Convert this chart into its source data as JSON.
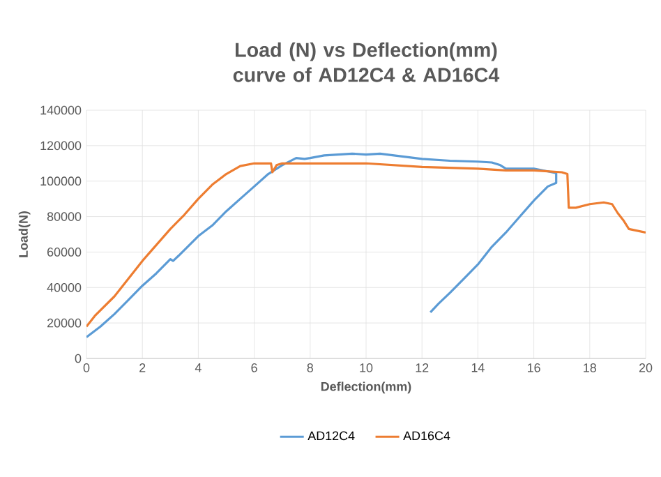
{
  "chart_data": {
    "type": "line",
    "title": "Load (N) vs Deflection(mm) curve of AD12C4 & AD16C4",
    "xlabel": "Deflection(mm)",
    "ylabel": "Load(N)",
    "xlim": [
      0,
      20
    ],
    "xticks": [
      0,
      2,
      4,
      6,
      8,
      10,
      12,
      14,
      16,
      18,
      20
    ],
    "ylim": [
      0,
      140000
    ],
    "yticks": [
      0,
      20000,
      40000,
      60000,
      80000,
      100000,
      120000,
      140000
    ],
    "grid": true,
    "legend": "bottom",
    "marker": "none",
    "line_style": "solid",
    "series": [
      {
        "name": "AD12C4",
        "color": "#5b9bd5",
        "x": [
          0,
          0.5,
          1,
          1.5,
          2,
          2.5,
          3,
          3.1,
          3.3,
          4,
          4.5,
          5,
          5.5,
          6,
          6.5,
          7,
          7.5,
          7.8,
          8,
          8.5,
          9,
          9.5,
          10,
          10.5,
          11,
          11.5,
          12,
          13,
          14,
          14.5,
          14.8,
          15,
          16,
          16.5,
          16.8,
          16.8,
          16.5,
          16,
          15.5,
          15,
          14.5,
          14,
          13.5,
          13,
          12.6,
          12.3
        ],
        "values": [
          12000,
          18000,
          25000,
          33000,
          41000,
          48000,
          56000,
          55000,
          58000,
          69000,
          75000,
          83000,
          90000,
          97000,
          104000,
          109000,
          113000,
          112500,
          113000,
          114500,
          115000,
          115500,
          115000,
          115500,
          114500,
          113500,
          112500,
          111500,
          111000,
          110500,
          109000,
          107000,
          107000,
          105500,
          104500,
          99000,
          97000,
          89000,
          80000,
          71000,
          63000,
          53000,
          45000,
          37000,
          31000,
          26000
        ]
      },
      {
        "name": "AD16C4",
        "color": "#ed7d31",
        "x": [
          0,
          0.3,
          1,
          2,
          3,
          3.5,
          4,
          4.5,
          5,
          5.5,
          6,
          6.6,
          6.65,
          6.8,
          7,
          8,
          10,
          12,
          14,
          15,
          16,
          17,
          17.2,
          17.25,
          17.5,
          18,
          18.5,
          18.8,
          19,
          19.2,
          19.4,
          20
        ],
        "values": [
          18000,
          24000,
          35000,
          55000,
          73000,
          81000,
          90000,
          98000,
          104000,
          108500,
          110000,
          110000,
          105000,
          109000,
          110000,
          110000,
          110000,
          108000,
          107000,
          106000,
          106000,
          105000,
          104000,
          85000,
          85000,
          87000,
          88000,
          87000,
          82000,
          78000,
          73000,
          71000
        ]
      }
    ]
  }
}
